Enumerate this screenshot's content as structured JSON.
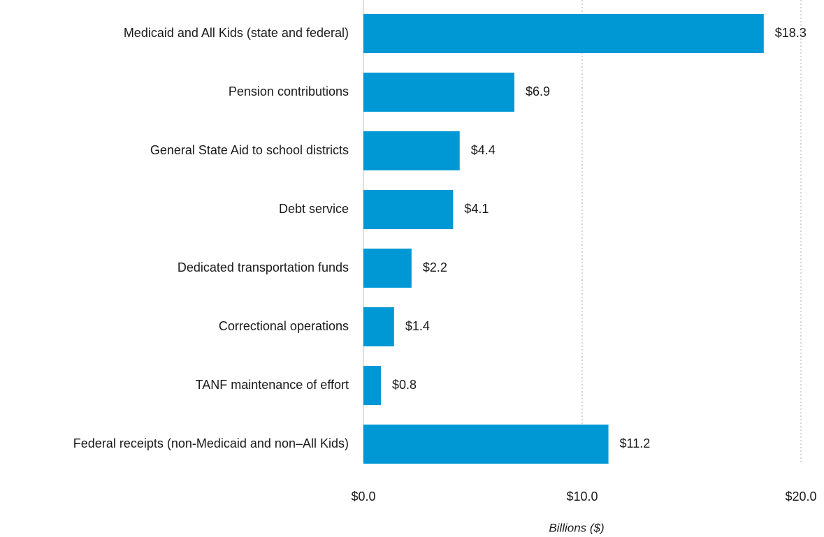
{
  "chart_data": {
    "type": "bar",
    "orientation": "horizontal",
    "x_label": "Billions ($)",
    "categories": [
      "Medicaid and All Kids (state and federal)",
      "Pension contributions",
      "General State Aid to school districts",
      "Debt service",
      "Dedicated transportation funds",
      "Correctional operations",
      "TANF maintenance of effort",
      "Federal receipts (non-Medicaid and non–All Kids)"
    ],
    "values": [
      18.3,
      6.9,
      4.4,
      4.1,
      2.2,
      1.4,
      0.8,
      11.2
    ],
    "value_labels": [
      "$18.3",
      "$6.9",
      "$4.4",
      "$4.1",
      "$2.2",
      "$1.4",
      "$0.8",
      "$11.2"
    ],
    "color": "#0098d4",
    "xlim": [
      0,
      20
    ],
    "xticks": [
      {
        "value": 0,
        "label": "$0.0"
      },
      {
        "value": 10,
        "label": "$10.0"
      },
      {
        "value": 20,
        "label": "$20.0"
      }
    ],
    "grid": true
  }
}
